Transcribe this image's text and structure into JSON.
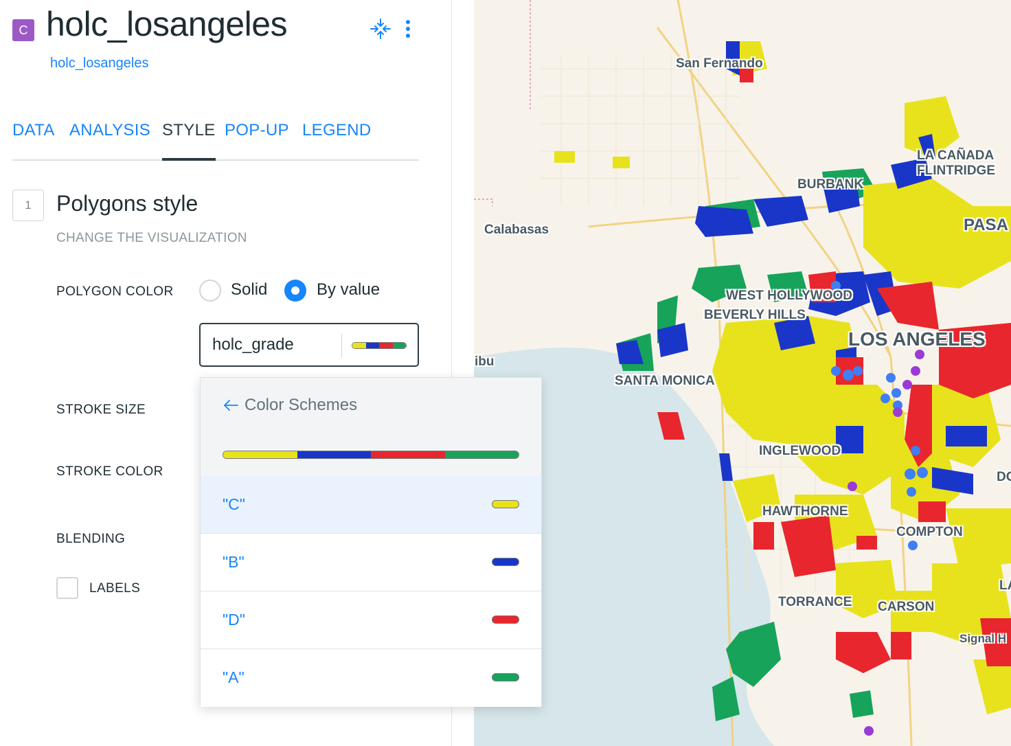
{
  "header": {
    "layer_letter": "C",
    "layer_name": "holc_losangeles",
    "source_name": "holc_losangeles",
    "collapse_icon": "collapse-icon",
    "more_icon": "more-vertical-icon"
  },
  "tabs": [
    {
      "label": "DATA",
      "active": false
    },
    {
      "label": "ANALYSIS",
      "active": false
    },
    {
      "label": "STYLE",
      "active": true
    },
    {
      "label": "POP-UP",
      "active": false
    },
    {
      "label": "LEGEND",
      "active": false
    }
  ],
  "section": {
    "number": "1",
    "title": "Polygons style",
    "subtitle": "CHANGE THE VISUALIZATION"
  },
  "polygon_color": {
    "label": "POLYGON COLOR",
    "options": [
      "Solid",
      "By value"
    ],
    "selected": "By value",
    "field_value": "holc_grade"
  },
  "stroke_size_label": "STROKE SIZE",
  "stroke_color_label": "STROKE COLOR",
  "blending_label": "BLENDING",
  "labels_checkbox": {
    "label": "LABELS",
    "checked": false
  },
  "colors": {
    "yellow": "#e8e21d",
    "blue": "#1a36c8",
    "red": "#e8262d",
    "green": "#17a35a",
    "accent": "#1785fb",
    "layer_purple": "#9b59c6"
  },
  "dropdown": {
    "title": "Color Schemes",
    "back_icon": "arrow-left-icon",
    "ramp": [
      "#e8e21d",
      "#1a36c8",
      "#e8262d",
      "#17a35a"
    ],
    "items": [
      {
        "label": "\"C\"",
        "color": "#e8e21d",
        "selected": true
      },
      {
        "label": "\"B\"",
        "color": "#1a36c8",
        "selected": false
      },
      {
        "label": "\"D\"",
        "color": "#e8262d",
        "selected": false
      },
      {
        "label": "\"A\"",
        "color": "#17a35a",
        "selected": false
      }
    ]
  },
  "map": {
    "labels": [
      "San Fernando",
      "Calabasas",
      "BURBANK",
      "LA CAÑADA",
      "FLINTRIDGE",
      "PASA",
      "WEST HOLLYWOOD",
      "BEVERLY HILLS",
      "LOS ANGELES",
      "ibu",
      "SANTA MONICA",
      "INGLEWOOD",
      "DO",
      "HAWTHORNE",
      "COMPTON",
      "TORRANCE",
      "CARSON",
      "LA",
      "Signal H"
    ]
  }
}
